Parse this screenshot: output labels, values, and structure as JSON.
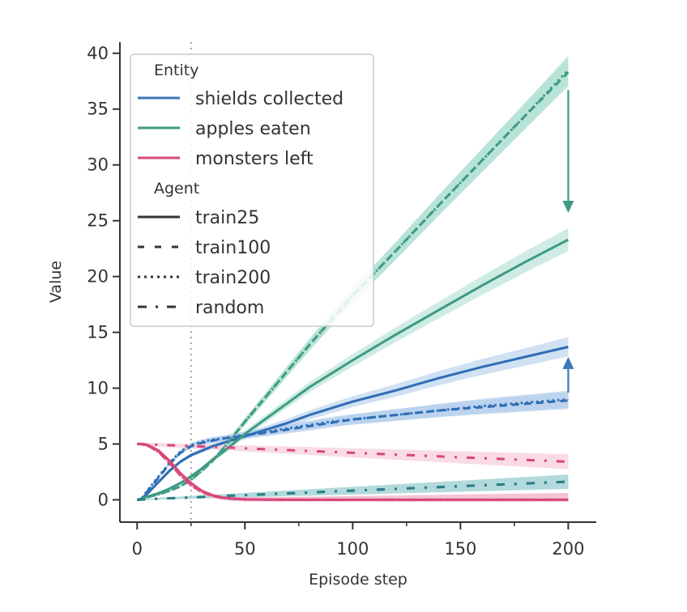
{
  "chart_data": {
    "type": "line",
    "xlabel": "Episode step",
    "ylabel": "Value",
    "xlim": [
      -8,
      213
    ],
    "ylim": [
      -2,
      41
    ],
    "xticks": [
      0,
      50,
      100,
      150,
      200
    ],
    "xtick_labels": [
      "0",
      "50",
      "100",
      "150",
      "200"
    ],
    "xminor_ticks": [
      25,
      75,
      125,
      175
    ],
    "yticks": [
      0,
      5,
      10,
      15,
      20,
      25,
      30,
      35,
      40
    ],
    "ytick_labels": [
      "0",
      "5",
      "10",
      "15",
      "20",
      "25",
      "30",
      "35",
      "40"
    ],
    "vline_x": 25,
    "x": [
      0,
      2,
      5,
      10,
      15,
      20,
      25,
      30,
      35,
      40,
      45,
      50,
      60,
      70,
      80,
      90,
      100,
      120,
      140,
      160,
      180,
      200
    ],
    "legend": {
      "placement": "top-left",
      "entity_title": "Entity",
      "agent_title": "Agent",
      "entities": [
        {
          "name": "shields collected",
          "color": "#3a76b8"
        },
        {
          "name": "apples eaten",
          "color": "#3f9a82"
        },
        {
          "name": "monsters left",
          "color": "#d8487a"
        }
      ],
      "agents": [
        {
          "name": "train25",
          "style": "solid"
        },
        {
          "name": "train100",
          "style": "dashed"
        },
        {
          "name": "train200",
          "style": "dotted"
        },
        {
          "name": "random",
          "style": "dashdot"
        }
      ]
    },
    "series": [
      {
        "entity": "shields collected",
        "agent": "train25",
        "color": "#2f6db5",
        "band_color": "#a9c8ea",
        "values": [
          0,
          0.1,
          0.6,
          1.6,
          2.6,
          3.4,
          4.0,
          4.4,
          4.8,
          5.1,
          5.4,
          5.7,
          6.3,
          6.9,
          7.6,
          8.2,
          8.8,
          9.8,
          10.9,
          11.9,
          12.8,
          13.7
        ]
      },
      {
        "entity": "shields collected",
        "agent": "train100",
        "color": "#2f6db5",
        "band_color": "#a9c8ea",
        "values": [
          0,
          0.1,
          0.8,
          2.0,
          3.2,
          4.2,
          4.8,
          5.1,
          5.3,
          5.5,
          5.6,
          5.8,
          6.0,
          6.3,
          6.6,
          6.9,
          7.2,
          7.6,
          8.0,
          8.3,
          8.6,
          8.9
        ]
      },
      {
        "entity": "shields collected",
        "agent": "train200",
        "color": "#2f6db5",
        "band_color": "#a9c8ea",
        "values": [
          0,
          0.1,
          0.9,
          2.1,
          3.3,
          4.3,
          4.9,
          5.2,
          5.4,
          5.5,
          5.7,
          5.8,
          6.1,
          6.4,
          6.7,
          7.0,
          7.2,
          7.6,
          8.0,
          8.4,
          8.7,
          9.0
        ]
      },
      {
        "entity": "shields collected",
        "agent": "random",
        "color": "#2a7f86",
        "band_color": "#9fd0d3",
        "values": [
          0,
          0.02,
          0.05,
          0.1,
          0.14,
          0.18,
          0.22,
          0.26,
          0.3,
          0.34,
          0.38,
          0.42,
          0.5,
          0.58,
          0.66,
          0.74,
          0.82,
          0.98,
          1.14,
          1.3,
          1.46,
          1.62
        ]
      },
      {
        "entity": "apples eaten",
        "agent": "train25",
        "color": "#3f9a82",
        "band_color": "#a6dccd",
        "values": [
          0,
          0.1,
          0.3,
          0.6,
          1.0,
          1.5,
          2.1,
          2.8,
          3.6,
          4.3,
          5.1,
          5.9,
          7.3,
          8.7,
          10.1,
          11.3,
          12.5,
          14.8,
          17.0,
          19.2,
          21.3,
          23.3
        ]
      },
      {
        "entity": "apples eaten",
        "agent": "train100",
        "color": "#3f9a82",
        "band_color": "#a6dccd",
        "values": [
          0,
          0.08,
          0.25,
          0.5,
          0.8,
          1.2,
          1.8,
          2.6,
          3.5,
          4.6,
          5.8,
          7.0,
          9.3,
          11.6,
          13.9,
          16.1,
          18.3,
          22.3,
          26.4,
          30.4,
          34.4,
          38.3
        ]
      },
      {
        "entity": "apples eaten",
        "agent": "train200",
        "color": "#3f9a82",
        "band_color": "#a6dccd",
        "values": [
          0,
          0.08,
          0.25,
          0.5,
          0.8,
          1.2,
          1.8,
          2.6,
          3.5,
          4.6,
          5.8,
          7.0,
          9.3,
          11.6,
          13.9,
          16.1,
          18.3,
          22.3,
          26.4,
          30.4,
          34.4,
          38.5
        ]
      },
      {
        "entity": "apples eaten",
        "agent": "random",
        "color": "#2a7f86",
        "band_color": "#9fd0d3",
        "values": [
          0,
          0.02,
          0.05,
          0.1,
          0.14,
          0.18,
          0.22,
          0.26,
          0.3,
          0.34,
          0.38,
          0.42,
          0.5,
          0.58,
          0.66,
          0.74,
          0.82,
          0.98,
          1.14,
          1.3,
          1.46,
          1.62
        ]
      },
      {
        "entity": "monsters left",
        "agent": "train25",
        "color": "#d8487a",
        "band_color": "#f4bccf",
        "values": [
          5,
          5,
          4.9,
          4.4,
          3.5,
          2.4,
          1.5,
          0.8,
          0.4,
          0.2,
          0.1,
          0.05,
          0.02,
          0.01,
          0,
          0,
          0,
          0,
          0,
          0,
          0,
          0
        ]
      },
      {
        "entity": "monsters left",
        "agent": "train100",
        "color": "#d8487a",
        "band_color": "#f4bccf",
        "values": [
          5,
          5,
          4.85,
          4.3,
          3.3,
          2.2,
          1.3,
          0.7,
          0.35,
          0.15,
          0.08,
          0.04,
          0.01,
          0,
          0,
          0,
          0,
          0,
          0,
          0,
          0,
          0
        ]
      },
      {
        "entity": "monsters left",
        "agent": "train200",
        "color": "#d8487a",
        "band_color": "#f4bccf",
        "values": [
          5,
          5,
          4.85,
          4.3,
          3.3,
          2.2,
          1.3,
          0.7,
          0.35,
          0.15,
          0.08,
          0.04,
          0.01,
          0,
          0,
          0,
          0,
          0,
          0,
          0,
          0,
          0
        ]
      },
      {
        "entity": "monsters left",
        "agent": "random",
        "color": "#d8487a",
        "band_color": "#f4bccf",
        "values": [
          5,
          4.99,
          4.97,
          4.93,
          4.89,
          4.85,
          4.81,
          4.77,
          4.73,
          4.69,
          4.65,
          4.61,
          4.53,
          4.45,
          4.37,
          4.29,
          4.21,
          4.05,
          3.89,
          3.73,
          3.57,
          3.41
        ]
      }
    ],
    "annotations": [
      {
        "type": "arrow",
        "x": 200,
        "y_from": 36.7,
        "y_to": 25.7,
        "color": "#3f9a82"
      },
      {
        "type": "arrow",
        "x": 200,
        "y_from": 9.6,
        "y_to": 12.8,
        "color": "#3a76b8"
      }
    ]
  }
}
